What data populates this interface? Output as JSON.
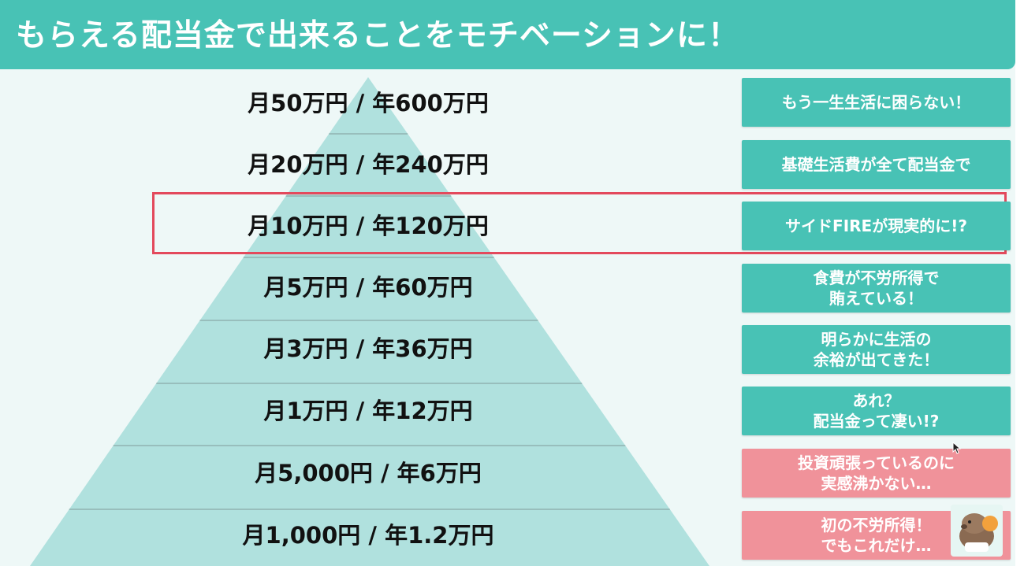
{
  "title": "もらえる配当金で出来ることをモチベーションに！",
  "colors": {
    "header": "#48c2b5",
    "pyramid": "#b0e1de",
    "teal_box": "#48c2b5",
    "pink_box": "#f0929a",
    "highlight": "#e3495c"
  },
  "tiers": [
    {
      "label": "月50万円 / 年600万円",
      "note": "もう一生生活に困らない！",
      "note_style": "teal"
    },
    {
      "label": "月20万円 / 年240万円",
      "note": "基礎生活費が全て配当金で",
      "note_style": "teal"
    },
    {
      "label": "月10万円 / 年120万円",
      "note": "サイドFIREが現実的に!?",
      "note_style": "teal",
      "highlighted": true
    },
    {
      "label": "月5万円 / 年60万円",
      "note": "食費が不労所得で\n賄えている！",
      "note_style": "teal"
    },
    {
      "label": "月3万円 / 年36万円",
      "note": "明らかに生活の\n余裕が出てきた！",
      "note_style": "teal"
    },
    {
      "label": "月1万円 / 年12万円",
      "note": "あれ？\n配当金って凄い!?",
      "note_style": "teal"
    },
    {
      "label": "月5,000円 / 年6万円",
      "note": "投資頑張っているのに\n実感沸かない…",
      "note_style": "pink"
    },
    {
      "label": "月1,000円 / 年1.2万円",
      "note": "初の不労所得！\nでもこれだけ…",
      "note_style": "pink"
    }
  ],
  "icons": {
    "mascot": "capybara-mascot-icon",
    "cursor": "mouse-cursor-icon"
  }
}
